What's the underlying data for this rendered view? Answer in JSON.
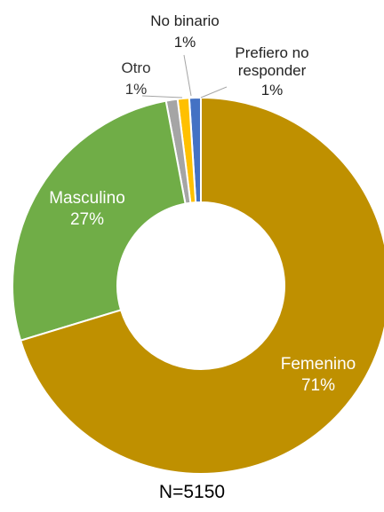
{
  "chart_data": {
    "type": "donut",
    "categories": [
      "Femenino",
      "Masculino",
      "Otro",
      "No binario",
      "Prefiero no responder"
    ],
    "values": [
      71,
      27,
      1,
      1,
      1
    ],
    "value_labels": [
      "71%",
      "27%",
      "1%",
      "1%",
      "1%"
    ],
    "colors": [
      "#bf9000",
      "#70ad47",
      "#a5a5a5",
      "#ffc000",
      "#4472c4"
    ],
    "note": "N=5150"
  }
}
